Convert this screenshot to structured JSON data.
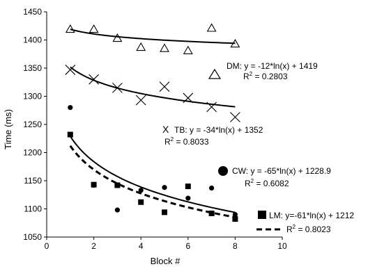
{
  "chart_data": {
    "type": "scatter",
    "xlabel": "Block #",
    "ylabel": "Time (ms)",
    "xlim": [
      0,
      10
    ],
    "ylim": [
      1050,
      1450
    ],
    "xticks": [
      "0",
      "2",
      "4",
      "6",
      "8",
      "10"
    ],
    "yticks": [
      "1050",
      "1100",
      "1150",
      "1200",
      "1250",
      "1300",
      "1350",
      "1400",
      "1450"
    ],
    "grid": false,
    "series": [
      {
        "name": "DM",
        "marker": "triangle-open",
        "x": [
          1,
          2,
          3,
          4,
          5,
          6,
          7,
          8
        ],
        "y": [
          1419,
          1419,
          1403,
          1387,
          1385,
          1381,
          1421,
          1393
        ],
        "trend": {
          "a": -12,
          "b": 1419
        },
        "trend_style": "solid",
        "eq_label": "DM: y = -12*ln(x) + 1419",
        "r2_label": "R",
        "r2_sup": "2",
        "r2_value": " = 0.2803"
      },
      {
        "name": "TB",
        "marker": "x",
        "x": [
          1,
          2,
          3,
          4,
          5,
          6,
          7,
          8
        ],
        "y": [
          1347,
          1330,
          1315,
          1293,
          1317,
          1297,
          1281,
          1263
        ],
        "trend": {
          "a": -34,
          "b": 1352
        },
        "trend_style": "solid",
        "eq_label": "TB: y = -34*ln(x) + 1352",
        "r2_label": "R",
        "r2_sup": "2",
        "r2_value": " = 0.8033"
      },
      {
        "name": "CW",
        "marker": "circle-filled",
        "x": [
          1,
          2,
          3,
          4,
          5,
          6,
          7,
          8
        ],
        "y": [
          1280,
          1142,
          1098,
          1133,
          1138,
          1119,
          1137,
          1090
        ],
        "trend": {
          "a": -65,
          "b": 1228.9
        },
        "trend_style": "solid",
        "eq_label": "CW: y = -65*ln(x) + 1228.9",
        "r2_label": "R",
        "r2_sup": "2",
        "r2_value": " = 0.6082"
      },
      {
        "name": "LM",
        "marker": "square-filled",
        "x": [
          1,
          2,
          3,
          4,
          5,
          6,
          7,
          8
        ],
        "y": [
          1232,
          1143,
          1142,
          1112,
          1094,
          1140,
          1092,
          1082
        ],
        "trend": {
          "a": -61,
          "b": 1212
        },
        "trend_style": "dashed",
        "eq_label": "LM: y=-61*ln(x) + 1212",
        "r2_label": "R",
        "r2_sup": "2",
        "r2_value": " = 0.8023"
      }
    ]
  }
}
